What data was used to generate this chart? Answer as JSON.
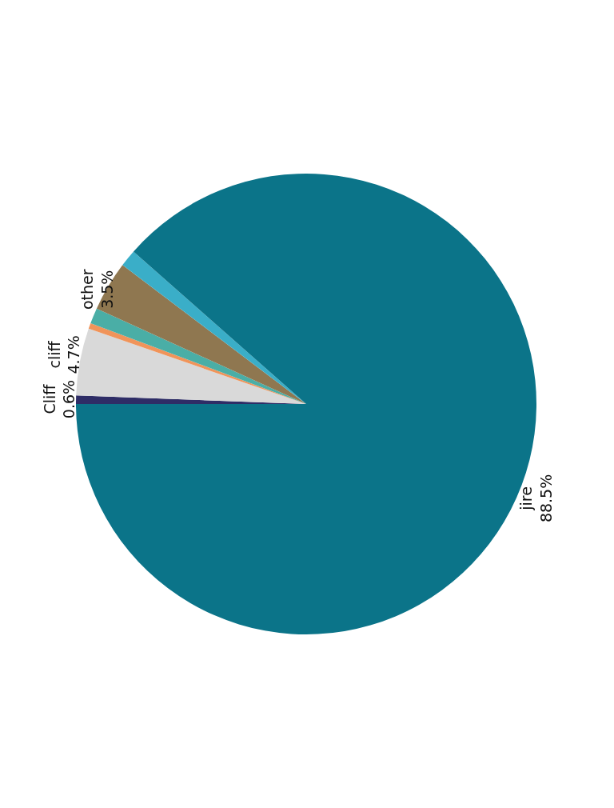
{
  "chart_data": {
    "type": "pie",
    "categories": [
      "Cliff",
      "cliff",
      null,
      null,
      "other",
      null,
      "jire"
    ],
    "values": [
      0.6,
      4.7,
      0.4,
      1.1,
      3.5,
      1.2,
      88.5
    ],
    "value_labels": [
      "0.6%",
      "4.7%",
      null,
      null,
      "3.5%",
      null,
      "88.5%"
    ],
    "colors": [
      "#2e2d66",
      "#d9d9d9",
      "#f0945a",
      "#4aaea6",
      "#8f7750",
      "#3aaec8",
      "#0b7489"
    ],
    "legend": false
  }
}
